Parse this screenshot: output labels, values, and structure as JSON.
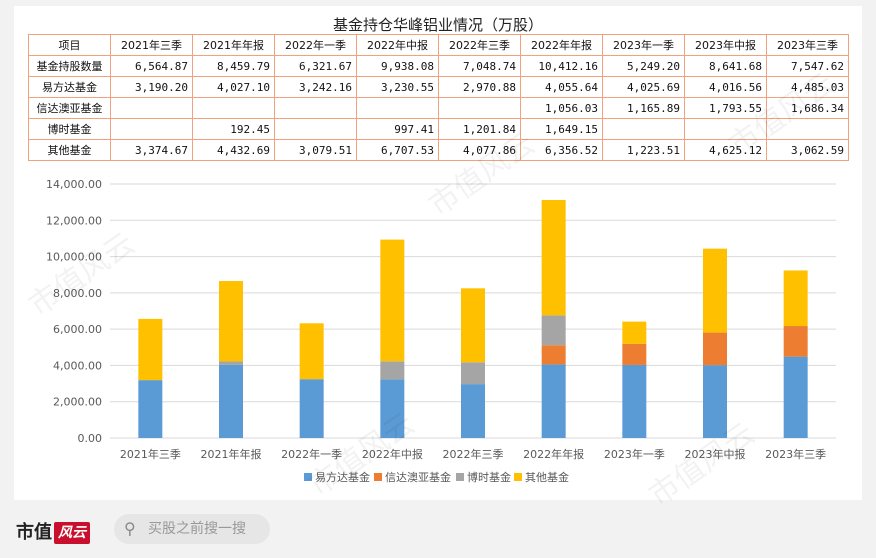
{
  "table": {
    "title": "基金持仓华峰铝业情况（万股）",
    "columns": [
      "项目",
      "2021年三季",
      "2021年年报",
      "2022年一季",
      "2022年中报",
      "2022年三季",
      "2022年年报",
      "2023年一季",
      "2023年中报",
      "2023年三季"
    ],
    "rows": [
      {
        "label": "基金持股数量",
        "cells": [
          "6,564.87",
          "8,459.79",
          "6,321.67",
          "9,938.08",
          "7,048.74",
          "10,412.16",
          "5,249.20",
          "8,641.68",
          "7,547.62"
        ]
      },
      {
        "label": "易方达基金",
        "cells": [
          "3,190.20",
          "4,027.10",
          "3,242.16",
          "3,230.55",
          "2,970.88",
          "4,055.64",
          "4,025.69",
          "4,016.56",
          "4,485.03"
        ]
      },
      {
        "label": "信达澳亚基金",
        "cells": [
          "",
          "",
          "",
          "",
          "",
          "1,056.03",
          "1,165.89",
          "1,793.55",
          "1,686.34"
        ]
      },
      {
        "label": "博时基金",
        "cells": [
          "",
          "192.45",
          "",
          "997.41",
          "1,201.84",
          "1,649.15",
          "",
          "",
          ""
        ]
      },
      {
        "label": "其他基金",
        "cells": [
          "3,374.67",
          "4,432.69",
          "3,079.51",
          "6,707.53",
          "4,077.86",
          "6,356.52",
          "1,223.51",
          "4,625.12",
          "3,062.59"
        ]
      }
    ]
  },
  "chart_data": {
    "type": "bar",
    "stacked": true,
    "categories": [
      "2021年三季",
      "2021年年报",
      "2022年一季",
      "2022年中报",
      "2022年三季",
      "2022年年报",
      "2023年一季",
      "2023年中报",
      "2023年三季"
    ],
    "series": [
      {
        "name": "易方达基金",
        "color": "#5b9bd5",
        "values": [
          3190.2,
          4027.1,
          3242.16,
          3230.55,
          2970.88,
          4055.64,
          4025.69,
          4016.56,
          4485.03
        ]
      },
      {
        "name": "信达澳亚基金",
        "color": "#ed7d31",
        "values": [
          0,
          0,
          0,
          0,
          0,
          1056.03,
          1165.89,
          1793.55,
          1686.34
        ]
      },
      {
        "name": "博时基金",
        "color": "#a5a5a5",
        "values": [
          0,
          192.45,
          0,
          997.41,
          1201.84,
          1649.15,
          0,
          0,
          0
        ]
      },
      {
        "name": "其他基金",
        "color": "#ffc000",
        "values": [
          3374.67,
          4432.69,
          3079.51,
          6707.53,
          4077.86,
          6356.52,
          1223.51,
          4625.12,
          3062.59
        ]
      }
    ],
    "ylim": [
      0,
      14000
    ],
    "yticks": [
      0,
      2000,
      4000,
      6000,
      8000,
      10000,
      12000,
      14000
    ],
    "ytick_labels": [
      "0.00",
      "2,000.00",
      "4,000.00",
      "6,000.00",
      "8,000.00",
      "10,000.00",
      "12,000.00",
      "14,000.00"
    ],
    "grid": true,
    "legend": "bottom-center"
  },
  "footer": {
    "logo_text": "市值",
    "logo_mark": "风云",
    "search_placeholder": "买股之前搜一搜",
    "search_icon": "search-icon"
  },
  "watermark": "市值风云"
}
